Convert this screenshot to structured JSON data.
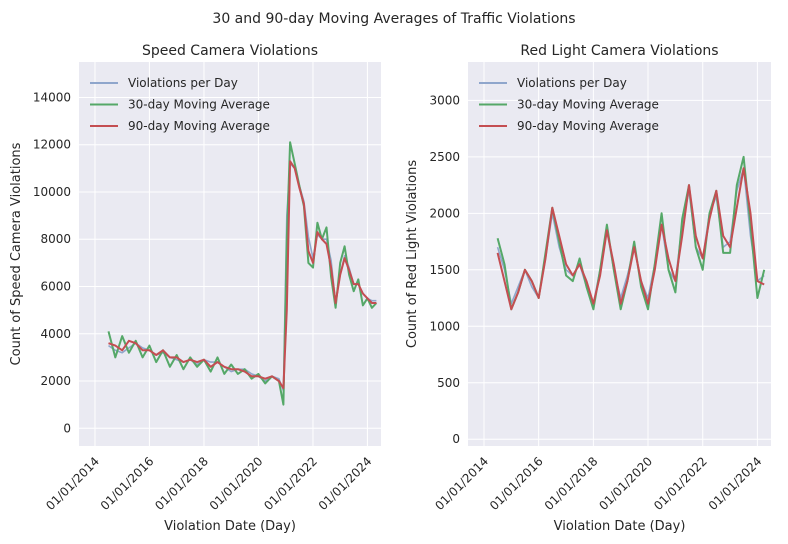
{
  "suptitle": "30 and 90-day Moving Averages of Traffic Violations",
  "colors": {
    "background": "#eaeaf2",
    "grid": "#ffffff",
    "daily": "#8fa6cc",
    "ma30": "#55a868",
    "ma90": "#c44e52"
  },
  "chart_data": [
    {
      "type": "line",
      "title": "Speed Camera Violations",
      "xlabel": "Violation Date (Day)",
      "ylabel": "Count of Speed Camera Violations",
      "xlim": [
        "2013-06-01",
        "2024-07-01"
      ],
      "ylim": [
        -750,
        15500
      ],
      "xticks": [
        "2014-01-01",
        "2016-01-01",
        "2018-01-01",
        "2020-01-01",
        "2022-01-01",
        "2024-01-01"
      ],
      "xtick_labels": [
        "01/01/2014",
        "01/01/2016",
        "01/01/2018",
        "01/01/2020",
        "01/01/2022",
        "01/01/2024"
      ],
      "yticks": [
        0,
        2000,
        4000,
        6000,
        8000,
        10000,
        12000,
        14000
      ],
      "ytick_labels": [
        "0",
        "2000",
        "4000",
        "6000",
        "8000",
        "10000",
        "12000",
        "14000"
      ],
      "grid": true,
      "legend_position": "top-left",
      "series": [
        {
          "name": "Violations per Day",
          "x": [
            "2014-07-01",
            "2014-10-01",
            "2015-01-01",
            "2015-04-01",
            "2015-07-01",
            "2015-10-01",
            "2016-01-01",
            "2016-04-01",
            "2016-07-01",
            "2016-10-01",
            "2017-01-01",
            "2017-04-01",
            "2017-07-01",
            "2017-10-01",
            "2018-01-01",
            "2018-04-01",
            "2018-07-01",
            "2018-10-01",
            "2019-01-01",
            "2019-04-01",
            "2019-07-01",
            "2019-10-01",
            "2020-01-01",
            "2020-04-01",
            "2020-07-01",
            "2020-10-01",
            "2020-12-01",
            "2021-01-15",
            "2021-03-01",
            "2021-05-01",
            "2021-07-01",
            "2021-09-01",
            "2021-11-01",
            "2022-01-01",
            "2022-03-01",
            "2022-05-01",
            "2022-07-01",
            "2022-09-01",
            "2022-11-01",
            "2023-01-01",
            "2023-03-01",
            "2023-05-01",
            "2023-07-01",
            "2023-09-01",
            "2023-11-01",
            "2024-01-01",
            "2024-03-01",
            "2024-05-01"
          ],
          "values": [
            3500,
            3300,
            3200,
            3400,
            3600,
            3400,
            3300,
            3100,
            3200,
            3000,
            2900,
            2800,
            2900,
            2700,
            2900,
            2800,
            2800,
            2600,
            2400,
            2500,
            2500,
            2300,
            2200,
            2000,
            2200,
            2100,
            1600,
            9000,
            11200,
            11000,
            10300,
            9600,
            8100,
            7200,
            8200,
            8000,
            8000,
            7100,
            5300,
            6500,
            7300,
            6800,
            6100,
            6100,
            5700,
            5500,
            5400,
            5400
          ]
        },
        {
          "name": "30-day Moving Average",
          "x": [
            "2014-07-01",
            "2014-10-01",
            "2015-01-01",
            "2015-04-01",
            "2015-07-01",
            "2015-10-01",
            "2016-01-01",
            "2016-04-01",
            "2016-07-01",
            "2016-10-01",
            "2017-01-01",
            "2017-04-01",
            "2017-07-01",
            "2017-10-01",
            "2018-01-01",
            "2018-04-01",
            "2018-07-01",
            "2018-10-01",
            "2019-01-01",
            "2019-04-01",
            "2019-07-01",
            "2019-10-01",
            "2020-01-01",
            "2020-04-01",
            "2020-07-01",
            "2020-10-01",
            "2020-12-01",
            "2021-01-15",
            "2021-03-01",
            "2021-05-01",
            "2021-07-01",
            "2021-09-01",
            "2021-11-01",
            "2022-01-01",
            "2022-03-01",
            "2022-05-01",
            "2022-07-01",
            "2022-09-01",
            "2022-11-01",
            "2023-01-01",
            "2023-03-01",
            "2023-05-01",
            "2023-07-01",
            "2023-09-01",
            "2023-11-01",
            "2024-01-01",
            "2024-03-01",
            "2024-05-01"
          ],
          "values": [
            4100,
            3000,
            3900,
            3200,
            3700,
            3000,
            3500,
            2800,
            3300,
            2600,
            3100,
            2500,
            3000,
            2600,
            2900,
            2400,
            3000,
            2300,
            2700,
            2300,
            2500,
            2100,
            2300,
            1900,
            2200,
            2000,
            1000,
            8000,
            12100,
            11200,
            10300,
            9400,
            7000,
            6800,
            8700,
            8000,
            8500,
            6400,
            5100,
            7000,
            7700,
            6500,
            5800,
            6300,
            5200,
            5500,
            5100,
            5300
          ]
        },
        {
          "name": "90-day Moving Average",
          "x": [
            "2014-07-01",
            "2014-10-01",
            "2015-01-01",
            "2015-04-01",
            "2015-07-01",
            "2015-10-01",
            "2016-01-01",
            "2016-04-01",
            "2016-07-01",
            "2016-10-01",
            "2017-01-01",
            "2017-04-01",
            "2017-07-01",
            "2017-10-01",
            "2018-01-01",
            "2018-04-01",
            "2018-07-01",
            "2018-10-01",
            "2019-01-01",
            "2019-04-01",
            "2019-07-01",
            "2019-10-01",
            "2020-01-01",
            "2020-04-01",
            "2020-07-01",
            "2020-10-01",
            "2020-12-01",
            "2021-01-15",
            "2021-03-01",
            "2021-05-01",
            "2021-07-01",
            "2021-09-01",
            "2021-11-01",
            "2022-01-01",
            "2022-03-01",
            "2022-05-01",
            "2022-07-01",
            "2022-09-01",
            "2022-11-01",
            "2023-01-01",
            "2023-03-01",
            "2023-05-01",
            "2023-07-01",
            "2023-09-01",
            "2023-11-01",
            "2024-01-01",
            "2024-03-01",
            "2024-05-01"
          ],
          "values": [
            3600,
            3500,
            3300,
            3700,
            3600,
            3300,
            3300,
            3100,
            3300,
            3000,
            3000,
            2800,
            2900,
            2800,
            2900,
            2600,
            2800,
            2600,
            2500,
            2500,
            2400,
            2200,
            2200,
            2100,
            2200,
            2000,
            1700,
            5000,
            11300,
            11000,
            10200,
            9500,
            7500,
            7000,
            8300,
            8000,
            7800,
            6800,
            5300,
            6500,
            7200,
            6700,
            6100,
            6100,
            5700,
            5500,
            5300,
            5300
          ]
        }
      ]
    },
    {
      "type": "line",
      "title": "Red Light Camera Violations",
      "xlabel": "Violation Date (Day)",
      "ylabel": "Count of Red Light Violations",
      "xlim": [
        "2013-06-01",
        "2024-07-01"
      ],
      "ylim": [
        -60,
        3340
      ],
      "xticks": [
        "2014-01-01",
        "2016-01-01",
        "2018-01-01",
        "2020-01-01",
        "2022-01-01",
        "2024-01-01"
      ],
      "xtick_labels": [
        "01/01/2014",
        "01/01/2016",
        "01/01/2018",
        "01/01/2020",
        "01/01/2022",
        "01/01/2024"
      ],
      "yticks": [
        0,
        500,
        1000,
        1500,
        2000,
        2500,
        3000
      ],
      "ytick_labels": [
        "0",
        "500",
        "1000",
        "1500",
        "2000",
        "2500",
        "3000"
      ],
      "grid": true,
      "legend_position": "top-left",
      "series": [
        {
          "name": "Violations per Day",
          "x": [
            "2014-07-01",
            "2014-10-01",
            "2015-01-01",
            "2015-04-01",
            "2015-07-01",
            "2015-10-01",
            "2016-01-01",
            "2016-04-01",
            "2016-07-01",
            "2016-10-01",
            "2017-01-01",
            "2017-04-01",
            "2017-07-01",
            "2017-10-01",
            "2018-01-01",
            "2018-04-01",
            "2018-07-01",
            "2018-10-01",
            "2019-01-01",
            "2019-04-01",
            "2019-07-01",
            "2019-10-01",
            "2020-01-01",
            "2020-04-01",
            "2020-07-01",
            "2020-10-01",
            "2021-01-01",
            "2021-04-01",
            "2021-07-01",
            "2021-10-01",
            "2022-01-01",
            "2022-04-01",
            "2022-07-01",
            "2022-10-01",
            "2023-01-01",
            "2023-04-01",
            "2023-07-01",
            "2023-10-01",
            "2024-01-01",
            "2024-04-01"
          ],
          "values": [
            1700,
            1500,
            1200,
            1350,
            1500,
            1350,
            1250,
            1600,
            2000,
            1700,
            1500,
            1450,
            1550,
            1350,
            1200,
            1500,
            1850,
            1500,
            1250,
            1450,
            1700,
            1400,
            1250,
            1550,
            1900,
            1500,
            1400,
            1900,
            2200,
            1700,
            1600,
            2000,
            2150,
            1700,
            1750,
            2200,
            2400,
            1800,
            1400,
            1450
          ]
        },
        {
          "name": "30-day Moving Average",
          "x": [
            "2014-07-01",
            "2014-10-01",
            "2015-01-01",
            "2015-04-01",
            "2015-07-01",
            "2015-10-01",
            "2016-01-01",
            "2016-04-01",
            "2016-07-01",
            "2016-10-01",
            "2017-01-01",
            "2017-04-01",
            "2017-07-01",
            "2017-10-01",
            "2018-01-01",
            "2018-04-01",
            "2018-07-01",
            "2018-10-01",
            "2019-01-01",
            "2019-04-01",
            "2019-07-01",
            "2019-10-01",
            "2020-01-01",
            "2020-04-01",
            "2020-07-01",
            "2020-10-01",
            "2021-01-01",
            "2021-04-01",
            "2021-07-01",
            "2021-10-01",
            "2022-01-01",
            "2022-04-01",
            "2022-07-01",
            "2022-10-01",
            "2023-01-01",
            "2023-04-01",
            "2023-07-01",
            "2023-10-01",
            "2024-01-01",
            "2024-04-01"
          ],
          "values": [
            1780,
            1550,
            1150,
            1300,
            1500,
            1400,
            1250,
            1650,
            2050,
            1750,
            1450,
            1400,
            1600,
            1350,
            1150,
            1500,
            1900,
            1500,
            1150,
            1400,
            1750,
            1350,
            1150,
            1550,
            2000,
            1500,
            1300,
            1950,
            2250,
            1700,
            1500,
            2000,
            2200,
            1650,
            1650,
            2250,
            2500,
            1900,
            1250,
            1500
          ]
        },
        {
          "name": "90-day Moving Average",
          "x": [
            "2014-07-01",
            "2014-10-01",
            "2015-01-01",
            "2015-04-01",
            "2015-07-01",
            "2015-10-01",
            "2016-01-01",
            "2016-04-01",
            "2016-07-01",
            "2016-10-01",
            "2017-01-01",
            "2017-04-01",
            "2017-07-01",
            "2017-10-01",
            "2018-01-01",
            "2018-04-01",
            "2018-07-01",
            "2018-10-01",
            "2019-01-01",
            "2019-04-01",
            "2019-07-01",
            "2019-10-01",
            "2020-01-01",
            "2020-04-01",
            "2020-07-01",
            "2020-10-01",
            "2021-01-01",
            "2021-04-01",
            "2021-07-01",
            "2021-10-01",
            "2022-01-01",
            "2022-04-01",
            "2022-07-01",
            "2022-10-01",
            "2023-01-01",
            "2023-04-01",
            "2023-07-01",
            "2023-10-01",
            "2024-01-01",
            "2024-04-01"
          ],
          "values": [
            1650,
            1400,
            1150,
            1300,
            1500,
            1400,
            1250,
            1600,
            2050,
            1800,
            1550,
            1450,
            1550,
            1400,
            1200,
            1450,
            1850,
            1550,
            1200,
            1400,
            1700,
            1400,
            1200,
            1500,
            1900,
            1600,
            1400,
            1800,
            2250,
            1800,
            1600,
            1950,
            2200,
            1800,
            1700,
            2050,
            2400,
            2000,
            1400,
            1370
          ]
        }
      ]
    }
  ]
}
